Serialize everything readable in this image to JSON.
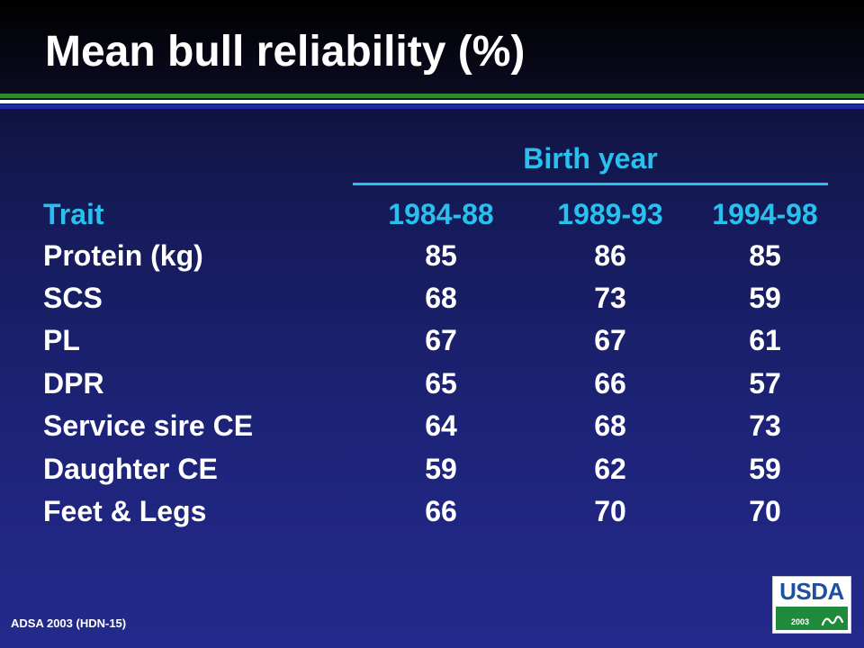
{
  "slide": {
    "title": "Mean bull reliability (%)",
    "group_header": "Birth year",
    "footer": "ADSA 2003 (HDN-15)",
    "logo": {
      "text": "USDA",
      "year": "2003"
    }
  },
  "colors": {
    "accent": "#29c0ee",
    "rule_green": "#2e8b2a",
    "rule_blue": "#1c2aa5",
    "logo_blue": "#1f4fa0",
    "logo_green": "#1f8a3b"
  },
  "table": {
    "columns": [
      "Trait",
      "1984-88",
      "1989-93",
      "1994-98"
    ],
    "rows": [
      [
        "Protein (kg)",
        "85",
        "86",
        "85"
      ],
      [
        "SCS",
        "68",
        "73",
        "59"
      ],
      [
        "PL",
        "67",
        "67",
        "61"
      ],
      [
        "DPR",
        "65",
        "66",
        "57"
      ],
      [
        "Service sire CE",
        "64",
        "68",
        "73"
      ],
      [
        "Daughter CE",
        "59",
        "62",
        "59"
      ],
      [
        "Feet & Legs",
        "66",
        "70",
        "70"
      ]
    ]
  }
}
